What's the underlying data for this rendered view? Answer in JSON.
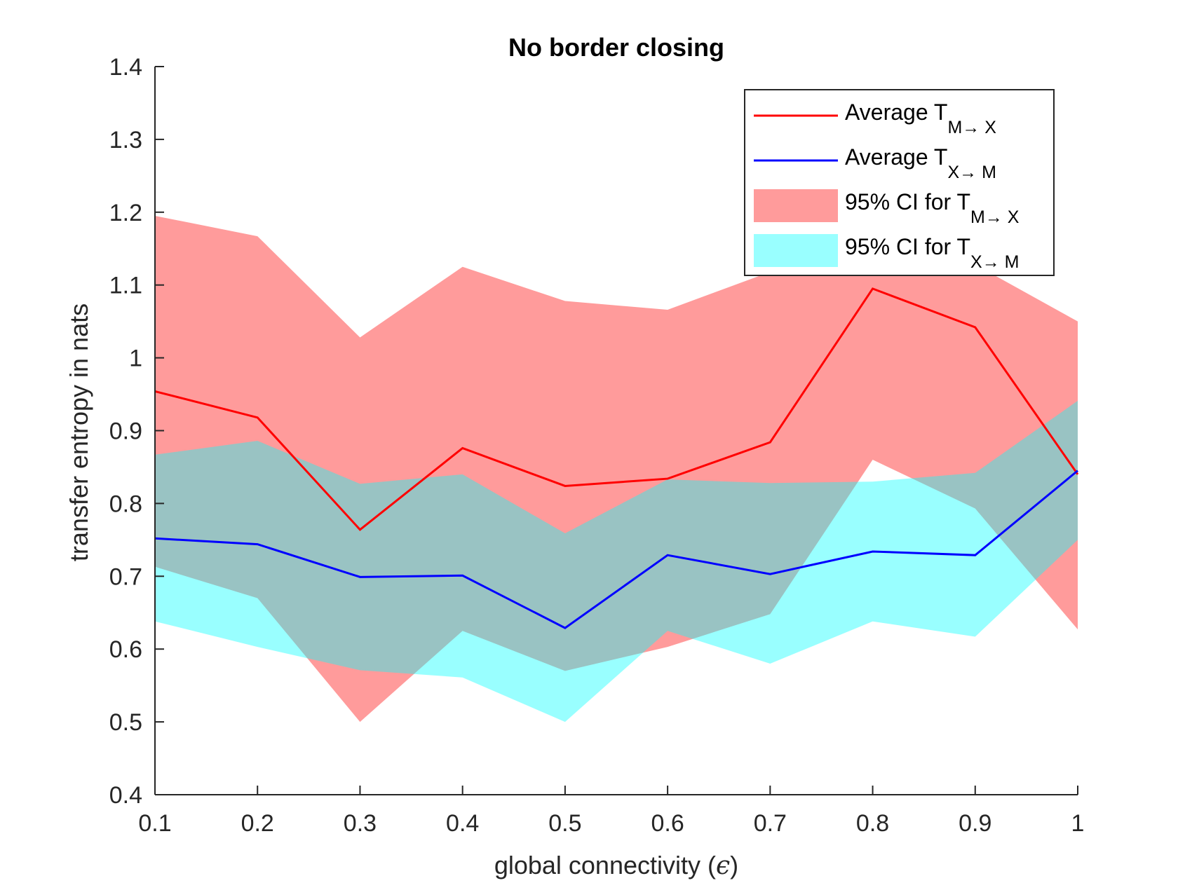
{
  "chart_data": {
    "type": "line",
    "title": "No border closing",
    "xlabel_text": "global connectivity (",
    "xlabel_symbol": "ϵ",
    "xlabel_close": ")",
    "ylabel": "transfer entropy in nats",
    "xlim": [
      0.1,
      1
    ],
    "ylim": [
      0.4,
      1.4
    ],
    "x": [
      0.1,
      0.2,
      0.3,
      0.4,
      0.5,
      0.6,
      0.7,
      0.8,
      0.9,
      1.0
    ],
    "xticks": [
      0.1,
      0.2,
      0.3,
      0.4,
      0.5,
      0.6,
      0.7,
      0.8,
      0.9,
      1
    ],
    "xtick_labels": [
      "0.1",
      "0.2",
      "0.3",
      "0.4",
      "0.5",
      "0.6",
      "0.7",
      "0.8",
      "0.9",
      "1"
    ],
    "yticks": [
      0.4,
      0.5,
      0.6,
      0.7,
      0.8,
      0.9,
      1.0,
      1.1,
      1.2,
      1.3,
      1.4
    ],
    "ytick_labels": [
      "0.4",
      "0.5",
      "0.6",
      "0.7",
      "0.8",
      "0.9",
      "1",
      "1.1",
      "1.2",
      "1.3",
      "1.4"
    ],
    "grid": false,
    "legend_position": "top-right",
    "bands": [
      {
        "legend_main": "95% CI for T",
        "legend_sub": "M→ X",
        "color": "#ff7f7f",
        "opacity": 0.78,
        "upper": [
          1.195,
          1.167,
          1.028,
          1.125,
          1.078,
          1.066,
          1.118,
          1.128,
          1.128,
          1.05
        ],
        "lower": [
          0.713,
          0.67,
          0.5,
          0.625,
          0.57,
          0.603,
          0.648,
          0.86,
          0.793,
          0.627
        ]
      },
      {
        "legend_main": "95% CI for T",
        "legend_sub": "X→ M",
        "color": "#00ffff",
        "opacity": 0.4,
        "upper": [
          0.867,
          0.886,
          0.827,
          0.84,
          0.759,
          0.833,
          0.828,
          0.83,
          0.842,
          0.941
        ],
        "lower": [
          0.638,
          0.603,
          0.571,
          0.561,
          0.5,
          0.625,
          0.58,
          0.638,
          0.617,
          0.75
        ]
      }
    ],
    "series": [
      {
        "legend_main": "Average T",
        "legend_sub": "M→ X",
        "color": "#ff0000",
        "values": [
          0.954,
          0.918,
          0.764,
          0.876,
          0.824,
          0.834,
          0.884,
          1.095,
          1.042,
          0.84
        ]
      },
      {
        "legend_main": "Average T",
        "legend_sub": "X→ M",
        "color": "#0000ff",
        "values": [
          0.752,
          0.744,
          0.699,
          0.701,
          0.629,
          0.729,
          0.703,
          0.734,
          0.729,
          0.845
        ]
      }
    ]
  }
}
